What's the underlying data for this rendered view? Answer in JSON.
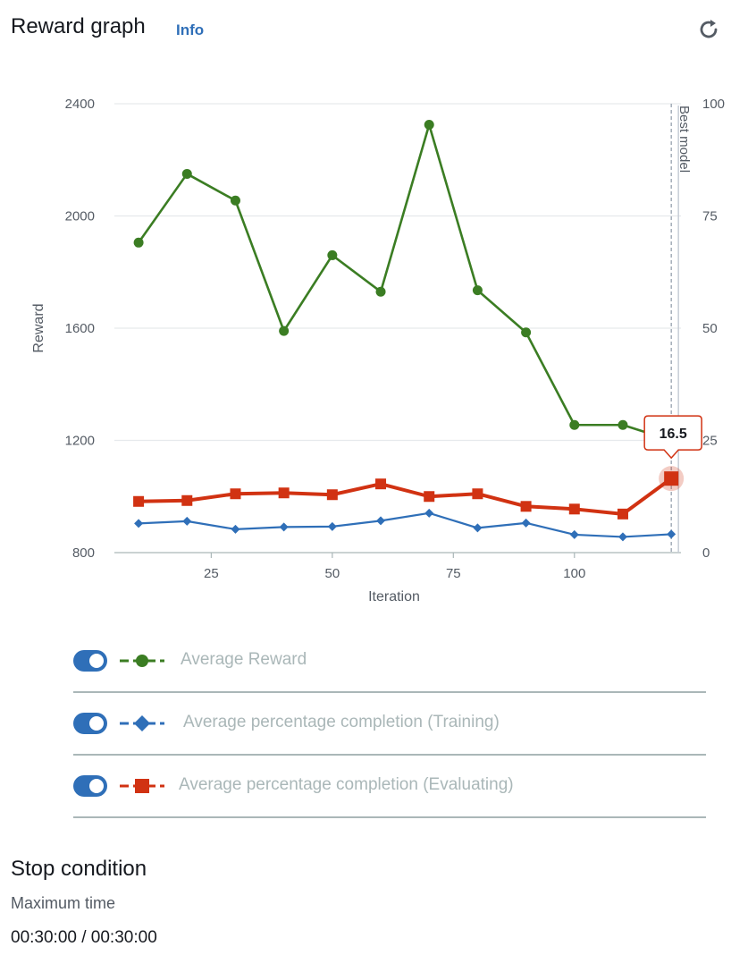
{
  "header": {
    "title": "Reward graph",
    "info_label": "Info",
    "refresh_icon": "refresh-icon"
  },
  "chart_data": {
    "type": "line",
    "xlabel": "Iteration",
    "ylabel": "Reward",
    "x_ticks": [
      25,
      50,
      75,
      100
    ],
    "xlim": [
      5,
      122
    ],
    "ylim": [
      800,
      2400
    ],
    "y_ticks": [
      800,
      1200,
      1600,
      2000,
      2400
    ],
    "y2lim": [
      0,
      100
    ],
    "y2_ticks": [
      0,
      25,
      50,
      75,
      100
    ],
    "grid": true,
    "best_model_label": "Best model",
    "best_model_x": 120,
    "tooltip": {
      "x": 120,
      "value": "16.5",
      "series": "Average percentage completion (Evaluating)"
    },
    "series": [
      {
        "name": "Average Reward",
        "axis": "left",
        "color": "#3b7d23",
        "marker": "circle",
        "x": [
          10,
          20,
          30,
          40,
          50,
          60,
          70,
          80,
          90,
          100,
          110,
          120
        ],
        "values": [
          1905,
          2150,
          2055,
          1590,
          1860,
          1730,
          2325,
          1735,
          1585,
          1255,
          1255,
          1200
        ]
      },
      {
        "name": "Average percentage completion (Training)",
        "axis": "right",
        "color": "#2f6fb8",
        "marker": "diamond",
        "x": [
          10,
          20,
          30,
          40,
          50,
          60,
          70,
          80,
          90,
          100,
          110,
          120
        ],
        "values": [
          6.5,
          7.0,
          5.2,
          5.7,
          5.8,
          7.1,
          8.8,
          5.5,
          6.6,
          4.0,
          3.5,
          4.1
        ]
      },
      {
        "name": "Average percentage completion (Evaluating)",
        "axis": "right",
        "color": "#d13212",
        "marker": "square",
        "x": [
          10,
          20,
          30,
          40,
          50,
          60,
          70,
          80,
          90,
          100,
          110,
          120
        ],
        "values": [
          11.4,
          11.6,
          13.1,
          13.3,
          12.9,
          15.3,
          12.5,
          13.1,
          10.3,
          9.7,
          8.6,
          16.5
        ]
      }
    ]
  },
  "legend": [
    {
      "label": "Average Reward",
      "color": "#3b7d23",
      "marker": "circle",
      "enabled": true
    },
    {
      "label": "Average percentage completion (Training)",
      "color": "#2f6fb8",
      "marker": "diamond",
      "enabled": true
    },
    {
      "label": "Average percentage completion (Evaluating)",
      "color": "#d13212",
      "marker": "square",
      "enabled": true
    }
  ],
  "stop_condition": {
    "title": "Stop condition",
    "subtitle": "Maximum time",
    "value": "00:30:00 / 00:30:00"
  }
}
